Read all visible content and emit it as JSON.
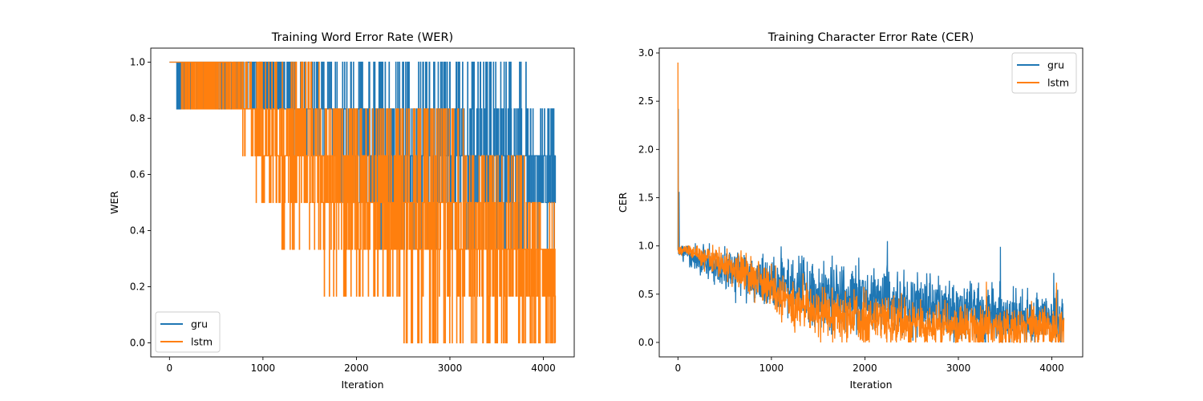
{
  "chart_data": [
    {
      "type": "line",
      "title": "Training Word Error Rate (WER)",
      "xlabel": "Iteration",
      "ylabel": "WER",
      "xlim": [
        -200,
        4330
      ],
      "ylim": [
        -0.05,
        1.05
      ],
      "xticks": [
        0,
        1000,
        2000,
        3000,
        4000
      ],
      "xtick_labels": [
        "0",
        "1000",
        "2000",
        "3000",
        "4000"
      ],
      "yticks": [
        0.0,
        0.2,
        0.4,
        0.6,
        0.8,
        1.0
      ],
      "ytick_labels": [
        "0.0",
        "0.2",
        "0.4",
        "0.6",
        "0.8",
        "1.0"
      ],
      "grid": false,
      "legend_position": "lower-left",
      "series": [
        {
          "name": "gru",
          "color": "#1f77b4",
          "profile": [
            {
              "x": 0,
              "hi": 1.0,
              "lo": 1.0
            },
            {
              "x": 100,
              "hi": 1.0,
              "lo": 0.833
            },
            {
              "x": 600,
              "hi": 1.0,
              "lo": 0.833
            },
            {
              "x": 1000,
              "hi": 1.0,
              "lo": 0.833
            },
            {
              "x": 1600,
              "hi": 1.0,
              "lo": 0.667
            },
            {
              "x": 2000,
              "hi": 1.0,
              "lo": 0.5
            },
            {
              "x": 2500,
              "hi": 1.0,
              "lo": 0.333
            },
            {
              "x": 3000,
              "hi": 1.0,
              "lo": 0.333
            },
            {
              "x": 3500,
              "hi": 1.0,
              "lo": 0.333
            },
            {
              "x": 4130,
              "hi": 0.833,
              "lo": 0.333
            }
          ]
        },
        {
          "name": "lstm",
          "color": "#ff7f0e",
          "profile": [
            {
              "x": 0,
              "hi": 1.0,
              "lo": 1.0
            },
            {
              "x": 180,
              "hi": 1.0,
              "lo": 0.833
            },
            {
              "x": 700,
              "hi": 1.0,
              "lo": 0.833
            },
            {
              "x": 1000,
              "hi": 1.0,
              "lo": 0.5
            },
            {
              "x": 1400,
              "hi": 1.0,
              "lo": 0.333
            },
            {
              "x": 1800,
              "hi": 0.833,
              "lo": 0.167
            },
            {
              "x": 2200,
              "hi": 0.833,
              "lo": 0.167
            },
            {
              "x": 2800,
              "hi": 0.833,
              "lo": 0.0
            },
            {
              "x": 3500,
              "hi": 0.667,
              "lo": 0.0
            },
            {
              "x": 4130,
              "hi": 0.5,
              "lo": 0.0
            }
          ]
        }
      ]
    },
    {
      "type": "line",
      "title": "Training Character Error Rate (CER)",
      "xlabel": "Iteration",
      "ylabel": "CER",
      "xlim": [
        -200,
        4330
      ],
      "ylim": [
        -0.15,
        3.05
      ],
      "xticks": [
        0,
        1000,
        2000,
        3000,
        4000
      ],
      "xtick_labels": [
        "0",
        "1000",
        "2000",
        "3000",
        "4000"
      ],
      "yticks": [
        0.0,
        0.5,
        1.0,
        1.5,
        2.0,
        2.5,
        3.0
      ],
      "ytick_labels": [
        "0.0",
        "0.5",
        "1.0",
        "1.5",
        "2.0",
        "2.5",
        "3.0"
      ],
      "grid": false,
      "legend_position": "upper-right",
      "series": [
        {
          "name": "gru",
          "color": "#1f77b4",
          "profile": [
            {
              "x": 0,
              "mean": 1.0,
              "spread": 0.05
            },
            {
              "x": 100,
              "mean": 0.92,
              "spread": 0.06
            },
            {
              "x": 300,
              "mean": 0.82,
              "spread": 0.1
            },
            {
              "x": 600,
              "mean": 0.73,
              "spread": 0.12
            },
            {
              "x": 1000,
              "mean": 0.62,
              "spread": 0.15
            },
            {
              "x": 1500,
              "mean": 0.5,
              "spread": 0.16
            },
            {
              "x": 2000,
              "mean": 0.44,
              "spread": 0.17
            },
            {
              "x": 2500,
              "mean": 0.38,
              "spread": 0.16
            },
            {
              "x": 3000,
              "mean": 0.32,
              "spread": 0.15
            },
            {
              "x": 3500,
              "mean": 0.27,
              "spread": 0.14
            },
            {
              "x": 4130,
              "mean": 0.25,
              "spread": 0.14
            }
          ],
          "spikes": [
            {
              "x": 3,
              "y": 2.42
            },
            {
              "x": 12,
              "y": 1.56
            },
            {
              "x": 2240,
              "y": 1.05
            },
            {
              "x": 3450,
              "y": 0.99
            },
            {
              "x": 1650,
              "y": 0.9
            },
            {
              "x": 4020,
              "y": 0.72
            }
          ]
        },
        {
          "name": "lstm",
          "color": "#ff7f0e",
          "profile": [
            {
              "x": 0,
              "mean": 1.0,
              "spread": 0.05
            },
            {
              "x": 100,
              "mean": 0.95,
              "spread": 0.05
            },
            {
              "x": 300,
              "mean": 0.88,
              "spread": 0.06
            },
            {
              "x": 600,
              "mean": 0.78,
              "spread": 0.08
            },
            {
              "x": 1000,
              "mean": 0.58,
              "spread": 0.12
            },
            {
              "x": 1200,
              "mean": 0.42,
              "spread": 0.14
            },
            {
              "x": 1500,
              "mean": 0.3,
              "spread": 0.14
            },
            {
              "x": 2000,
              "mean": 0.24,
              "spread": 0.13
            },
            {
              "x": 2500,
              "mean": 0.2,
              "spread": 0.12
            },
            {
              "x": 3000,
              "mean": 0.17,
              "spread": 0.11
            },
            {
              "x": 3500,
              "mean": 0.15,
              "spread": 0.11
            },
            {
              "x": 4130,
              "mean": 0.15,
              "spread": 0.12
            }
          ],
          "spikes": [
            {
              "x": 0,
              "y": 2.9
            },
            {
              "x": 3300,
              "y": 0.63
            },
            {
              "x": 4050,
              "y": 0.62
            }
          ]
        }
      ]
    }
  ]
}
